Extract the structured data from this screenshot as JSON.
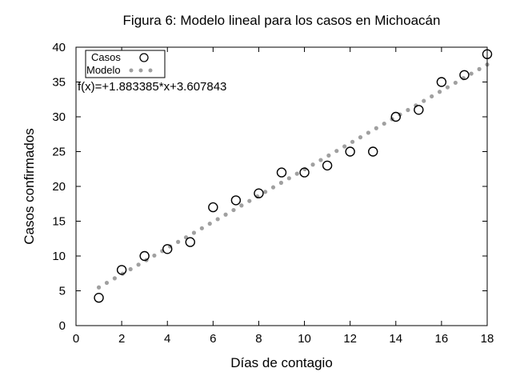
{
  "chart_data": {
    "type": "scatter",
    "title": "Figura 6: Modelo lineal para los casos en Michoacán",
    "xlabel": "Días de contagio",
    "ylabel": "Casos confirmados",
    "xlim": [
      0,
      18
    ],
    "ylim": [
      0,
      40
    ],
    "xticks": [
      0,
      2,
      4,
      6,
      8,
      10,
      12,
      14,
      16,
      18
    ],
    "yticks": [
      0,
      5,
      10,
      15,
      20,
      25,
      30,
      35,
      40
    ],
    "grid": false,
    "legend_position": "top-left",
    "annotation": "f(x)=+1.883385*x+3.607843",
    "series": [
      {
        "name": "Casos",
        "style": "open-circle",
        "color": "#000000",
        "x": [
          1,
          2,
          3,
          4,
          5,
          6,
          7,
          8,
          9,
          10,
          11,
          12,
          13,
          14,
          15,
          16,
          17,
          18
        ],
        "y": [
          4,
          8,
          10,
          11,
          12,
          17,
          18,
          19,
          22,
          22,
          23,
          25,
          25,
          30,
          31,
          35,
          36,
          39
        ]
      },
      {
        "name": "Modelo",
        "style": "dotted-line",
        "color": "#a0a0a0",
        "slope": 1.883385,
        "intercept": 3.607843,
        "x_range": [
          1,
          18
        ]
      }
    ]
  }
}
